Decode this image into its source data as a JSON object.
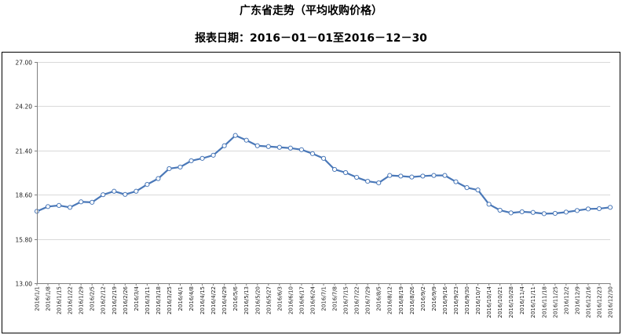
{
  "chart_data": {
    "type": "line",
    "title": "广东省走势（平均收购价格）",
    "subtitle": "报表日期：2016－01－01至2016－12－30",
    "xlabel": "",
    "ylabel": "",
    "ylim": [
      13.0,
      27.0
    ],
    "y_ticks": [
      "13.00",
      "15.80",
      "18.60",
      "21.40",
      "24.20",
      "27.00"
    ],
    "grid": "horizontal",
    "legend": "none",
    "colors": {
      "line": "#4a78b8",
      "marker_fill": "#ffffff",
      "grid": "#d9d9d9",
      "axis": "#808080"
    },
    "x": [
      "2016/1/1",
      "2016/1/8",
      "2016/1/15",
      "2016/1/22",
      "2016/1/29",
      "2016/2/5",
      "2016/2/12",
      "2016/2/19",
      "2016/2/26",
      "2016/3/4",
      "2016/3/11",
      "2016/3/18",
      "2016/3/25",
      "2016/4/1",
      "2016/4/8",
      "2016/4/15",
      "2016/4/22",
      "2016/4/29",
      "2016/5/6",
      "2016/5/13",
      "2016/5/20",
      "2016/5/27",
      "2016/6/3",
      "2016/6/10",
      "2016/6/17",
      "2016/6/24",
      "2016/7/1",
      "2016/7/8",
      "2016/7/15",
      "2016/7/22",
      "2016/7/29",
      "2016/8/5",
      "2016/8/12",
      "2016/8/19",
      "2016/8/26",
      "2016/9/2",
      "2016/9/9",
      "2016/9/16",
      "2016/9/23",
      "2016/9/30",
      "2016/10/7",
      "2016/10/14",
      "2016/10/21",
      "2016/10/28",
      "2016/11/4",
      "2016/11/11",
      "2016/11/18",
      "2016/11/25",
      "2016/12/2",
      "2016/12/9",
      "2016/12/16",
      "2016/12/23",
      "2016/12/30"
    ],
    "series": [
      {
        "values": [
          17.55,
          17.85,
          17.92,
          17.8,
          18.15,
          18.12,
          18.6,
          18.82,
          18.62,
          18.82,
          19.25,
          19.62,
          20.25,
          20.35,
          20.75,
          20.9,
          21.1,
          21.7,
          22.35,
          22.05,
          21.7,
          21.65,
          21.6,
          21.55,
          21.45,
          21.2,
          20.9,
          20.2,
          20.0,
          19.7,
          19.45,
          19.35,
          19.82,
          19.78,
          19.72,
          19.78,
          19.82,
          19.82,
          19.42,
          19.05,
          18.9,
          18.0,
          17.62,
          17.45,
          17.52,
          17.48,
          17.4,
          17.42,
          17.5,
          17.6,
          17.7,
          17.72,
          17.8
        ]
      }
    ]
  }
}
